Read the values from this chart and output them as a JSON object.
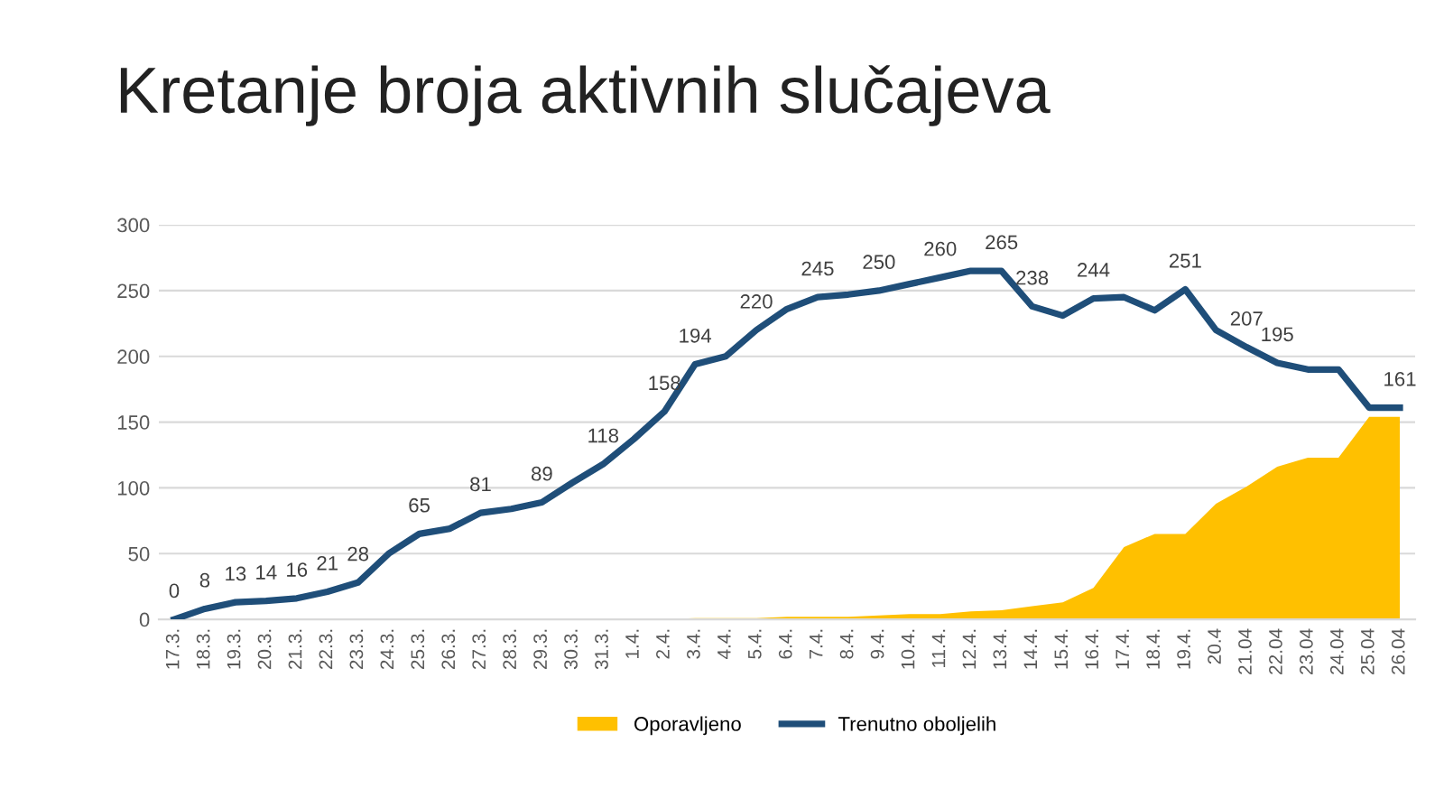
{
  "chart_data": {
    "type": "line",
    "title": "Kretanje broja aktivnih slučajeva",
    "categories": [
      "17.3.",
      "18.3.",
      "19.3.",
      "20.3.",
      "21.3.",
      "22.3.",
      "23.3.",
      "24.3.",
      "25.3.",
      "26.3.",
      "27.3.",
      "28.3.",
      "29.3.",
      "30.3.",
      "31.3.",
      "1.4.",
      "2.4.",
      "3.4.",
      "4.4.",
      "5.4.",
      "6.4.",
      "7.4.",
      "8.4.",
      "9.4.",
      "10.4.",
      "11.4.",
      "12.4.",
      "13.4.",
      "14.4.",
      "15.4.",
      "16.4.",
      "17.4.",
      "18.4.",
      "19.4.",
      "20.4",
      "21.04",
      "22.04",
      "23.04",
      "24.04",
      "25.04",
      "26.04"
    ],
    "series": [
      {
        "name": "Oporavljeno",
        "type": "area",
        "color": "#ffc000",
        "values": [
          null,
          null,
          null,
          null,
          null,
          null,
          null,
          null,
          null,
          null,
          null,
          null,
          null,
          null,
          null,
          null,
          0,
          1,
          1,
          1,
          2,
          2,
          2,
          3,
          4,
          4,
          6,
          7,
          10,
          13,
          24,
          55,
          65,
          65,
          88,
          101,
          116,
          123,
          123,
          154,
          154
        ]
      },
      {
        "name": "Trenutno oboljelih",
        "color": "#1f4e79",
        "values": [
          0,
          8,
          13,
          14,
          16,
          21,
          28,
          50,
          65,
          69,
          81,
          84,
          89,
          104,
          118,
          137,
          158,
          194,
          200,
          220,
          236,
          245,
          247,
          250,
          255,
          260,
          265,
          265,
          238,
          231,
          244,
          245,
          235,
          251,
          220,
          207,
          195,
          190,
          190,
          161,
          161
        ],
        "value_labels": [
          "0",
          "8",
          "13",
          "14",
          "16",
          "21",
          "28",
          null,
          "65",
          null,
          "81",
          null,
          "89",
          null,
          "118",
          null,
          "158",
          "194",
          null,
          "220",
          null,
          "245",
          null,
          "250",
          null,
          "260",
          null,
          "265",
          "238",
          null,
          "244",
          null,
          null,
          "251",
          null,
          "207",
          "195",
          null,
          null,
          null,
          "161"
        ]
      }
    ],
    "ylim": [
      0,
      300
    ],
    "yticks": [
      0,
      50,
      100,
      150,
      200,
      250,
      300
    ],
    "grid": "y",
    "legend": "bottom",
    "line_style": "solid",
    "marker": "none"
  }
}
